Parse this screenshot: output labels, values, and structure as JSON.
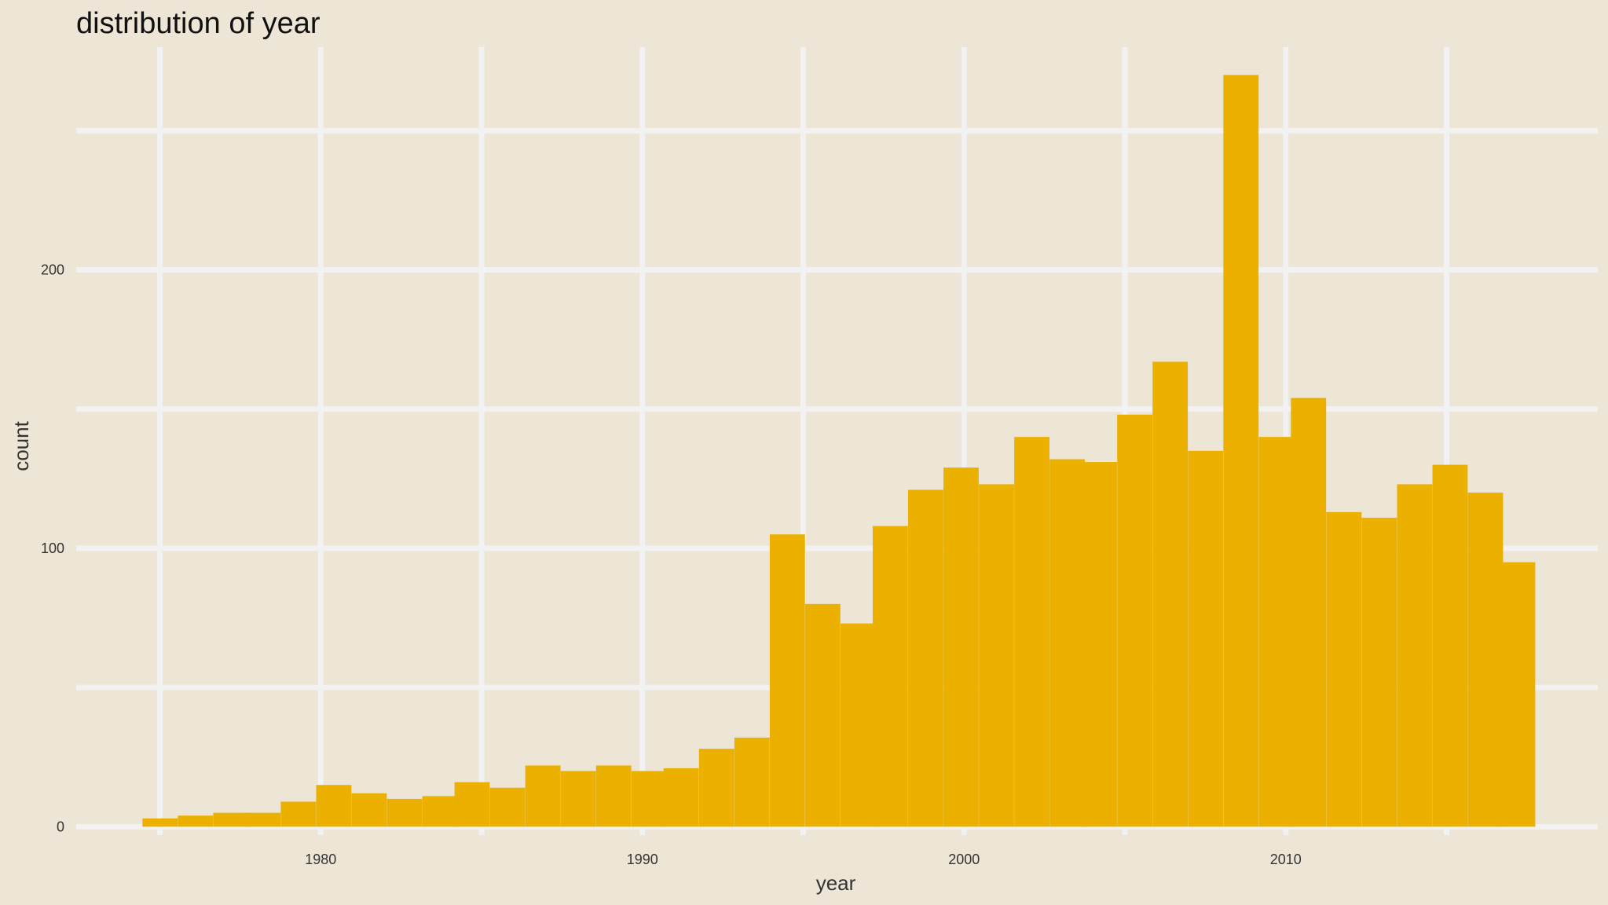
{
  "chart_data": {
    "type": "bar",
    "subtype": "histogram",
    "title": "distribution of year",
    "xlabel": "year",
    "ylabel": "count",
    "bin_width": 1.08,
    "bins": [
      {
        "x": 1975.0,
        "count": 3
      },
      {
        "x": 1976.1,
        "count": 4
      },
      {
        "x": 1977.2,
        "count": 5
      },
      {
        "x": 1978.2,
        "count": 5
      },
      {
        "x": 1979.3,
        "count": 9
      },
      {
        "x": 1980.4,
        "count": 15
      },
      {
        "x": 1981.5,
        "count": 12
      },
      {
        "x": 1982.6,
        "count": 10
      },
      {
        "x": 1983.7,
        "count": 11
      },
      {
        "x": 1984.7,
        "count": 16
      },
      {
        "x": 1985.8,
        "count": 14
      },
      {
        "x": 1986.9,
        "count": 22
      },
      {
        "x": 1988.0,
        "count": 20
      },
      {
        "x": 1989.1,
        "count": 22
      },
      {
        "x": 1990.2,
        "count": 20
      },
      {
        "x": 1991.2,
        "count": 21
      },
      {
        "x": 1992.3,
        "count": 28
      },
      {
        "x": 1993.4,
        "count": 32
      },
      {
        "x": 1994.5,
        "count": 105
      },
      {
        "x": 1995.6,
        "count": 80
      },
      {
        "x": 1996.7,
        "count": 73
      },
      {
        "x": 1997.7,
        "count": 108
      },
      {
        "x": 1998.8,
        "count": 121
      },
      {
        "x": 1999.9,
        "count": 129
      },
      {
        "x": 2001.0,
        "count": 123
      },
      {
        "x": 2002.1,
        "count": 140
      },
      {
        "x": 2003.2,
        "count": 132
      },
      {
        "x": 2004.2,
        "count": 131
      },
      {
        "x": 2005.3,
        "count": 148
      },
      {
        "x": 2006.4,
        "count": 167
      },
      {
        "x": 2007.5,
        "count": 135
      },
      {
        "x": 2008.6,
        "count": 270
      },
      {
        "x": 2009.7,
        "count": 140
      },
      {
        "x": 2010.7,
        "count": 154
      },
      {
        "x": 2011.8,
        "count": 113
      },
      {
        "x": 2012.9,
        "count": 111
      },
      {
        "x": 2014.0,
        "count": 123
      },
      {
        "x": 2015.1,
        "count": 130
      },
      {
        "x": 2016.2,
        "count": 120
      },
      {
        "x": 2017.2,
        "count": 95
      }
    ],
    "xlim": [
      1972.4,
      2019.7
    ],
    "ylim": [
      -3,
      280
    ],
    "x_ticks": [
      1980,
      1990,
      2000,
      2010
    ],
    "x_minor_ticks": [
      1975,
      1985,
      1995,
      2005,
      2015
    ],
    "y_ticks": [
      0,
      100,
      200
    ],
    "y_minor_ticks": [
      50,
      150,
      250
    ],
    "grid": true,
    "legend": "none",
    "colors": {
      "bar": "#ebb000",
      "background": "#ede5d5",
      "grid": "#f2f2f2",
      "text": "#333333",
      "title": "#111111"
    }
  }
}
